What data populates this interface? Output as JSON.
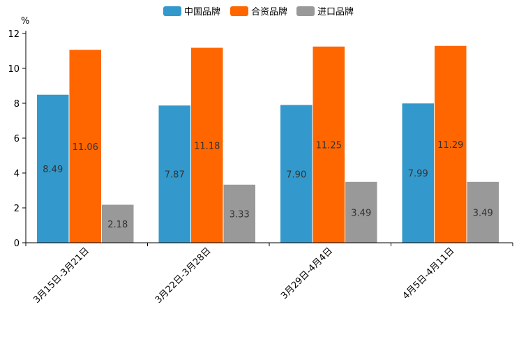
{
  "chart_data": {
    "type": "bar",
    "unit_label": "%",
    "categories": [
      "3月15日-3月21日",
      "3月22日-3月28日",
      "3月29日-4月4日",
      "4月5日-4月11日"
    ],
    "series": [
      {
        "name": "中国品牌",
        "color": "#3399cc",
        "values": [
          8.49,
          7.87,
          7.9,
          7.99
        ],
        "labels": [
          "8.49",
          "7.87",
          "7.90",
          "7.99"
        ]
      },
      {
        "name": "合资品牌",
        "color": "#ff6600",
        "values": [
          11.06,
          11.18,
          11.25,
          11.29
        ],
        "labels": [
          "11.06",
          "11.18",
          "11.25",
          "11.29"
        ]
      },
      {
        "name": "进口品牌",
        "color": "#999999",
        "values": [
          2.18,
          3.33,
          3.49,
          3.49
        ],
        "labels": [
          "2.18",
          "3.33",
          "3.49",
          "3.49"
        ]
      }
    ],
    "ylim": [
      0,
      12
    ],
    "yticks": [
      0,
      2,
      4,
      6,
      8,
      10,
      12
    ],
    "legend": "top-center"
  }
}
